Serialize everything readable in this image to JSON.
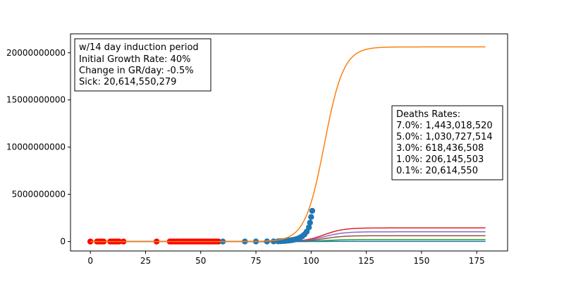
{
  "chart_data": {
    "type": "line",
    "xlim": [
      -9,
      189
    ],
    "ylim": [
      -1000000000,
      22000000000
    ],
    "x_ticks": [
      0,
      25,
      50,
      75,
      100,
      125,
      150,
      175
    ],
    "y_ticks": [
      0,
      5000000000,
      10000000000,
      15000000000,
      20000000000
    ],
    "x_tick_labels": [
      "0",
      "25",
      "50",
      "75",
      "100",
      "125",
      "150",
      "175"
    ],
    "y_tick_labels": [
      "0",
      "5000000000",
      "10000000000",
      "15000000000",
      "20000000000"
    ],
    "grid": false,
    "projection_curve": {
      "total": 20614550279,
      "midpoint_day": 106,
      "steepness": 0.23,
      "x_range": [
        0,
        179
      ],
      "color": "#ff7f0e"
    },
    "death_curves": [
      {
        "rate": 0.07,
        "final": 1443018520,
        "color": "#d62728"
      },
      {
        "rate": 0.05,
        "final": 1030727514,
        "color": "#9467bd"
      },
      {
        "rate": 0.03,
        "final": 618436508,
        "color": "#8c564b"
      },
      {
        "rate": 0.01,
        "final": 206145503,
        "color": "#2ca02c"
      },
      {
        "rate": 0.001,
        "final": 20614550,
        "color": "#1f77b4"
      }
    ],
    "observed_cases": {
      "color": "#1f77b4",
      "points": [
        [
          60,
          1000000
        ],
        [
          70,
          3000000
        ],
        [
          75,
          5000000
        ],
        [
          80,
          9000000
        ],
        [
          83,
          15000000
        ],
        [
          85,
          25000000
        ],
        [
          86,
          35000000
        ],
        [
          87,
          50000000
        ],
        [
          88,
          65000000
        ],
        [
          89,
          85000000
        ],
        [
          90,
          110000000
        ],
        [
          91,
          140000000
        ],
        [
          92,
          180000000
        ],
        [
          93,
          240000000
        ],
        [
          94,
          310000000
        ],
        [
          95,
          420000000
        ],
        [
          96,
          560000000
        ],
        [
          97,
          760000000
        ],
        [
          98,
          1050000000
        ],
        [
          99,
          1500000000
        ],
        [
          99.5,
          2000000000
        ],
        [
          100,
          2600000000
        ],
        [
          100.5,
          3250000000
        ]
      ]
    },
    "observed_deaths": {
      "color": "#ff0000",
      "x": [
        0,
        3,
        4,
        5,
        6,
        9,
        10,
        11,
        12,
        13,
        15,
        30,
        36,
        37,
        38,
        39,
        40,
        41,
        42,
        43,
        44,
        45,
        46,
        47,
        48,
        49,
        50,
        51,
        52,
        53,
        54,
        55,
        56,
        57,
        58
      ],
      "y": 0
    }
  },
  "info_box": {
    "lines": [
      "w/14 day induction period",
      "Initial Growth Rate: 40%",
      "Change in GR/day: -0.5%",
      "Sick: 20,614,550,279"
    ]
  },
  "deaths_box": {
    "lines": [
      "Deaths Rates:",
      "7.0%: 1,443,018,520",
      "5.0%: 1,030,727,514",
      "3.0%: 618,436,508",
      "1.0%: 206,145,503",
      "0.1%: 20,614,550"
    ]
  }
}
